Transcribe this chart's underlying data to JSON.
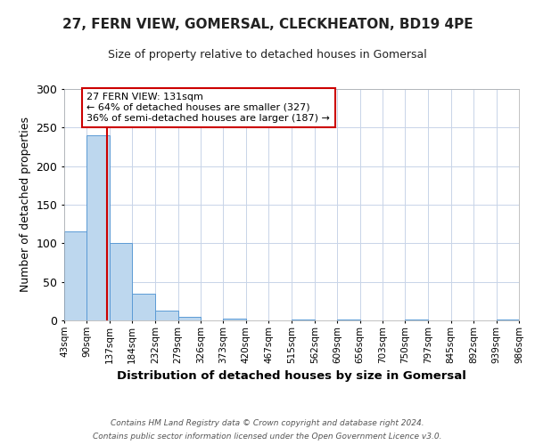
{
  "title": "27, FERN VIEW, GOMERSAL, CLECKHEATON, BD19 4PE",
  "subtitle": "Size of property relative to detached houses in Gomersal",
  "xlabel": "Distribution of detached houses by size in Gomersal",
  "ylabel": "Number of detached properties",
  "bin_edges": [
    43,
    90,
    137,
    184,
    232,
    279,
    326,
    373,
    420,
    467,
    515,
    562,
    609,
    656,
    703,
    750,
    797,
    845,
    892,
    939,
    986
  ],
  "bin_labels": [
    "43sqm",
    "90sqm",
    "137sqm",
    "184sqm",
    "232sqm",
    "279sqm",
    "326sqm",
    "373sqm",
    "420sqm",
    "467sqm",
    "515sqm",
    "562sqm",
    "609sqm",
    "656sqm",
    "703sqm",
    "750sqm",
    "797sqm",
    "845sqm",
    "892sqm",
    "939sqm",
    "986sqm"
  ],
  "bar_heights": [
    115,
    240,
    100,
    35,
    13,
    5,
    0,
    2,
    0,
    0,
    1,
    0,
    1,
    0,
    0,
    1,
    0,
    0,
    0,
    1
  ],
  "bar_color": "#bdd7ee",
  "bar_edge_color": "#5b9bd5",
  "ylim": [
    0,
    300
  ],
  "yticks": [
    0,
    50,
    100,
    150,
    200,
    250,
    300
  ],
  "property_line_x": 131,
  "property_line_color": "#cc0000",
  "annotation_text": "27 FERN VIEW: 131sqm\n← 64% of detached houses are smaller (327)\n36% of semi-detached houses are larger (187) →",
  "annotation_box_color": "#ffffff",
  "annotation_box_edge_color": "#cc0000",
  "footer_line1": "Contains HM Land Registry data © Crown copyright and database right 2024.",
  "footer_line2": "Contains public sector information licensed under the Open Government Licence v3.0.",
  "background_color": "#ffffff",
  "grid_color": "#c8d4e8"
}
